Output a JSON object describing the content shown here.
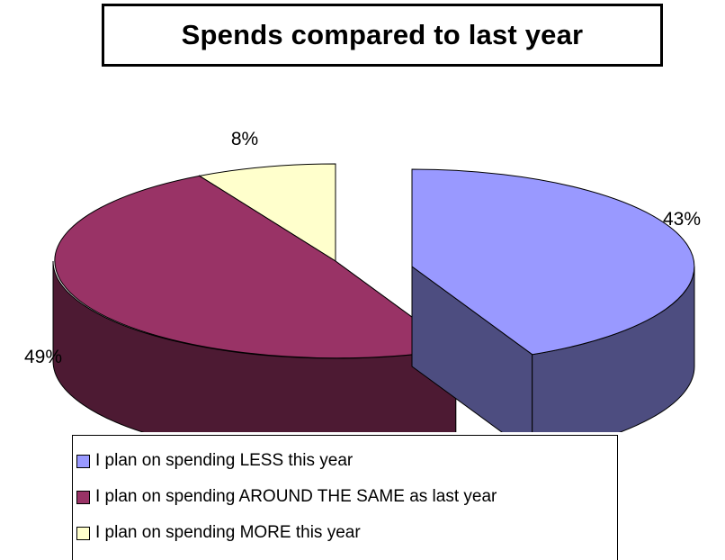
{
  "chart_data": {
    "type": "pie",
    "title": "Spends compared to last year",
    "slices": [
      {
        "label": "I plan on spending LESS this year",
        "value": 43,
        "display": "43%",
        "color": "#9999FF",
        "side_color": "#4D4D80"
      },
      {
        "label": "I plan on spending AROUND THE SAME as last year",
        "value": 49,
        "display": "49%",
        "color": "#993366",
        "side_color": "#4D1A33"
      },
      {
        "label": "I plan on spending MORE this year",
        "value": 8,
        "display": "8%",
        "color": "#FFFFCC",
        "side_color": "#808066"
      }
    ],
    "style": "3d exploded",
    "legend_position": "bottom"
  }
}
